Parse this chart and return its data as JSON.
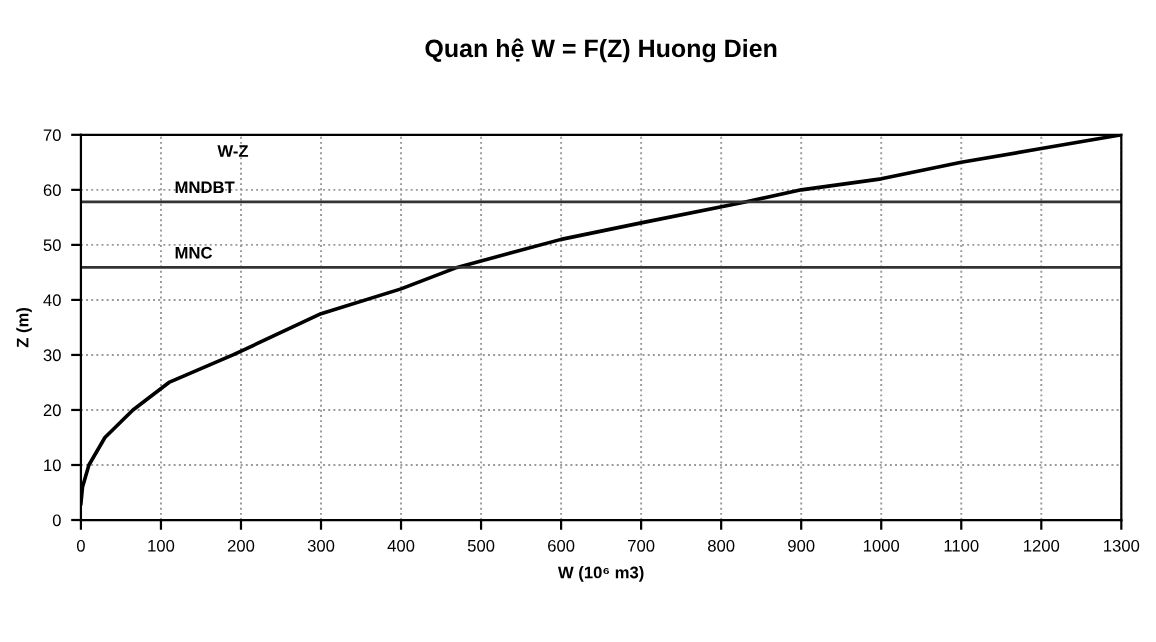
{
  "chart_data": {
    "type": "line",
    "title": "Quan hệ W = F(Z) Huong Dien",
    "xlabel": "W (10⁶ m3)",
    "ylabel": "Z (m)",
    "x": [
      0,
      2,
      10,
      30,
      65,
      110,
      190,
      300,
      400,
      470,
      600,
      700,
      830,
      900,
      1000,
      1100,
      1200,
      1300
    ],
    "series": [
      {
        "name": "W-Z",
        "color": "#000000",
        "values": [
          3,
          6,
          10,
          15,
          20,
          25,
          30,
          37.5,
          42,
          45.9,
          51,
          54,
          57.8,
          60,
          62,
          65,
          67.5,
          70
        ]
      }
    ],
    "xlim": [
      0,
      1300
    ],
    "ylim": [
      0,
      70
    ],
    "xticks": [
      0,
      100,
      200,
      300,
      400,
      500,
      600,
      700,
      800,
      900,
      1000,
      1100,
      1200,
      1300
    ],
    "yticks": [
      0,
      10,
      20,
      30,
      40,
      50,
      60,
      70
    ],
    "ref_lines": [
      {
        "axis": "y",
        "value": 57.8,
        "label": "MNDBT",
        "color": "#333333"
      },
      {
        "axis": "y",
        "value": 45.9,
        "label": "MNC",
        "color": "#333333"
      }
    ],
    "grid": true,
    "legend": false,
    "marker": "none",
    "line_style": "solid"
  }
}
